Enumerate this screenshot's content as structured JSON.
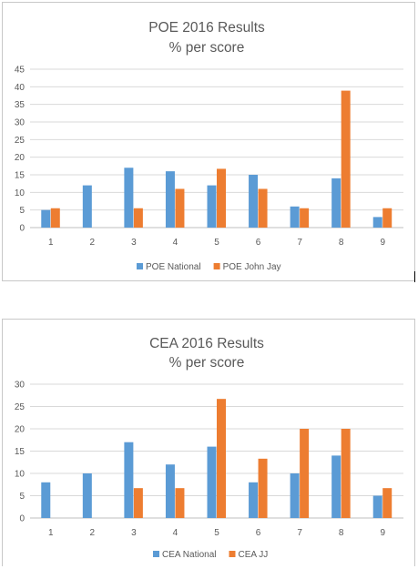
{
  "chart_data": [
    {
      "type": "bar",
      "title": "POE 2016 Results",
      "subtitle": "% per score",
      "categories": [
        "1",
        "2",
        "3",
        "4",
        "5",
        "6",
        "7",
        "8",
        "9"
      ],
      "ylim": [
        0,
        45
      ],
      "yticks": [
        "0",
        "5",
        "10",
        "15",
        "20",
        "25",
        "30",
        "35",
        "40",
        "45"
      ],
      "grid": true,
      "legend": "bottom",
      "series": [
        {
          "name": "POE National",
          "color": "#5b9bd5",
          "values": [
            5,
            12,
            17,
            16,
            12,
            15,
            6,
            14,
            3
          ]
        },
        {
          "name": "POE John Jay",
          "color": "#ed7d31",
          "values": [
            5.5,
            0,
            5.5,
            11,
            16.7,
            11,
            5.5,
            38.9,
            5.5
          ]
        }
      ]
    },
    {
      "type": "bar",
      "title": "CEA 2016 Results",
      "subtitle": "% per score",
      "categories": [
        "1",
        "2",
        "3",
        "4",
        "5",
        "6",
        "7",
        "8",
        "9"
      ],
      "ylim": [
        0,
        30
      ],
      "yticks": [
        "0",
        "5",
        "10",
        "15",
        "20",
        "25",
        "30"
      ],
      "grid": true,
      "legend": "bottom",
      "series": [
        {
          "name": "CEA National",
          "color": "#5b9bd5",
          "values": [
            8,
            10,
            17,
            12,
            16,
            8,
            10,
            14,
            5
          ]
        },
        {
          "name": "CEA JJ",
          "color": "#ed7d31",
          "values": [
            0,
            0,
            6.7,
            6.7,
            26.7,
            13.3,
            20,
            20,
            6.7
          ]
        }
      ]
    }
  ]
}
